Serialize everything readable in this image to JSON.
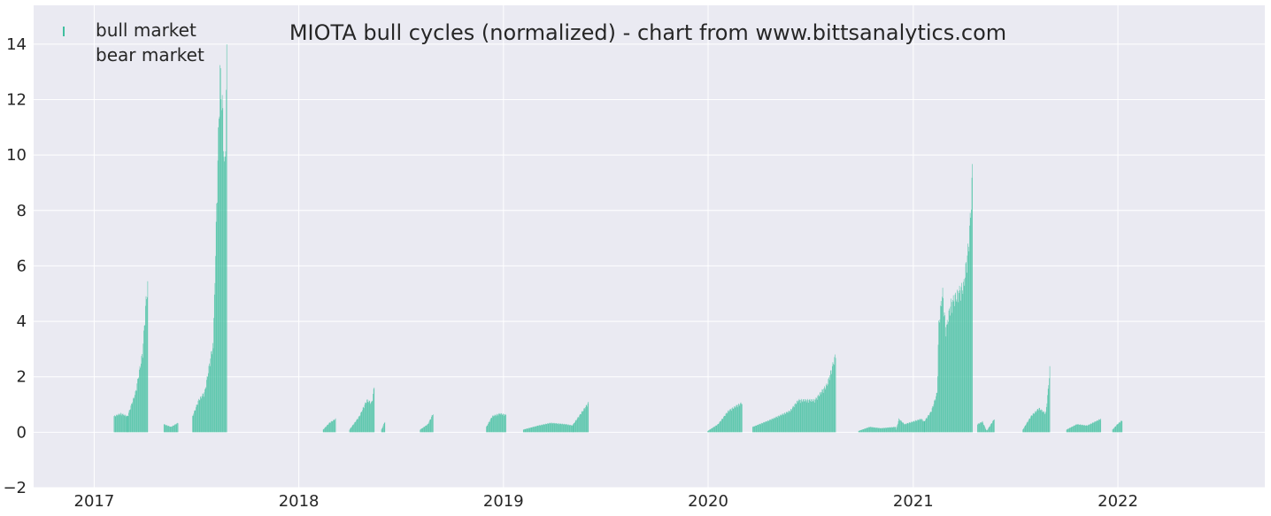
{
  "chart_data": {
    "type": "bar",
    "title": "MIOTA bull cycles (normalized)  - chart from www.bittsanalytics.com",
    "xlabel": "",
    "ylabel": "",
    "ylim": [
      -2,
      15.4
    ],
    "xlim": [
      "2016-09-15",
      "2022-09-20"
    ],
    "yticks": [
      -2,
      0,
      2,
      4,
      6,
      8,
      10,
      12,
      14
    ],
    "xticks": [
      {
        "date": "2017-01-01",
        "label": "2017"
      },
      {
        "date": "2018-01-01",
        "label": "2018"
      },
      {
        "date": "2019-01-01",
        "label": "2019"
      },
      {
        "date": "2020-01-01",
        "label": "2020"
      },
      {
        "date": "2021-01-01",
        "label": "2021"
      },
      {
        "date": "2022-01-01",
        "label": "2022"
      }
    ],
    "grid": true,
    "legend_placement": "top-left",
    "series": [
      {
        "name": "bull market",
        "color": "#3fbf9f",
        "segments": [
          {
            "start": "2017-02-05",
            "end": "2017-03-01",
            "points": [
              [
                0,
                0.6
              ],
              [
                0.5,
                0.7
              ],
              [
                1,
                0.6
              ]
            ]
          },
          {
            "start": "2017-03-01",
            "end": "2017-04-06",
            "points": [
              [
                0,
                0.6
              ],
              [
                0.4,
                1.5
              ],
              [
                0.75,
                3.0
              ],
              [
                0.9,
                4.8
              ],
              [
                1,
                5.5
              ]
            ]
          },
          {
            "start": "2017-05-05",
            "end": "2017-05-30",
            "points": [
              [
                0,
                0.3
              ],
              [
                0.5,
                0.2
              ],
              [
                1,
                0.35
              ]
            ]
          },
          {
            "start": "2017-06-25",
            "end": "2017-07-31",
            "points": [
              [
                0,
                0.6
              ],
              [
                0.3,
                1.2
              ],
              [
                0.6,
                1.5
              ],
              [
                0.85,
                2.6
              ],
              [
                1,
                3.3
              ]
            ]
          },
          {
            "start": "2017-08-01",
            "end": "2017-08-25",
            "points": [
              [
                0,
                3.3
              ],
              [
                0.3,
                9.5
              ],
              [
                0.5,
                13.5
              ],
              [
                0.7,
                12.0
              ],
              [
                0.85,
                9.5
              ],
              [
                1,
                14.0
              ]
            ]
          },
          {
            "start": "2018-02-13",
            "end": "2018-03-07",
            "points": [
              [
                0,
                0.1
              ],
              [
                0.5,
                0.35
              ],
              [
                1,
                0.5
              ]
            ]
          },
          {
            "start": "2018-04-01",
            "end": "2018-05-15",
            "points": [
              [
                0,
                0.1
              ],
              [
                0.4,
                0.6
              ],
              [
                0.7,
                1.2
              ],
              [
                0.9,
                1.1
              ],
              [
                1,
                1.7
              ]
            ]
          },
          {
            "start": "2018-05-28",
            "end": "2018-06-03",
            "points": [
              [
                0,
                0.1
              ],
              [
                1,
                0.4
              ]
            ]
          },
          {
            "start": "2018-08-05",
            "end": "2018-08-28",
            "points": [
              [
                0,
                0.1
              ],
              [
                0.6,
                0.3
              ],
              [
                1,
                0.7
              ]
            ]
          },
          {
            "start": "2018-12-01",
            "end": "2019-01-05",
            "points": [
              [
                0,
                0.2
              ],
              [
                0.3,
                0.6
              ],
              [
                0.7,
                0.7
              ],
              [
                1,
                0.65
              ]
            ]
          },
          {
            "start": "2019-02-05",
            "end": "2019-05-05",
            "points": [
              [
                0,
                0.1
              ],
              [
                0.3,
                0.25
              ],
              [
                0.55,
                0.35
              ],
              [
                0.85,
                0.3
              ],
              [
                1,
                0.25
              ]
            ]
          },
          {
            "start": "2019-05-05",
            "end": "2019-06-01",
            "points": [
              [
                0,
                0.3
              ],
              [
                0.5,
                0.7
              ],
              [
                1,
                1.1
              ]
            ]
          },
          {
            "start": "2019-12-31",
            "end": "2020-03-01",
            "points": [
              [
                0,
                0.05
              ],
              [
                0.3,
                0.3
              ],
              [
                0.6,
                0.8
              ],
              [
                0.85,
                1.0
              ],
              [
                1,
                1.1
              ]
            ]
          },
          {
            "start": "2020-03-20",
            "end": "2020-08-15",
            "points": [
              [
                0,
                0.2
              ],
              [
                0.2,
                0.45
              ],
              [
                0.45,
                0.8
              ],
              [
                0.55,
                1.2
              ],
              [
                0.75,
                1.2
              ],
              [
                0.9,
                1.8
              ],
              [
                1,
                2.9
              ]
            ]
          },
          {
            "start": "2020-09-25",
            "end": "2020-11-30",
            "points": [
              [
                0,
                0.05
              ],
              [
                0.3,
                0.2
              ],
              [
                0.6,
                0.15
              ],
              [
                1,
                0.2
              ]
            ]
          },
          {
            "start": "2020-12-01",
            "end": "2021-01-20",
            "points": [
              [
                0,
                0.1
              ],
              [
                0.1,
                0.5
              ],
              [
                0.3,
                0.3
              ],
              [
                0.6,
                0.4
              ],
              [
                0.9,
                0.5
              ],
              [
                1,
                0.4
              ]
            ]
          },
          {
            "start": "2021-01-20",
            "end": "2021-04-16",
            "points": [
              [
                0,
                0.4
              ],
              [
                0.15,
                0.8
              ],
              [
                0.27,
                1.5
              ],
              [
                0.3,
                4.0
              ],
              [
                0.38,
                5.3
              ],
              [
                0.45,
                3.8
              ],
              [
                0.55,
                4.8
              ],
              [
                0.7,
                5.2
              ],
              [
                0.82,
                5.5
              ],
              [
                0.92,
                7.0
              ],
              [
                0.97,
                8.4
              ],
              [
                1,
                9.8
              ]
            ]
          },
          {
            "start": "2021-04-25",
            "end": "2021-05-25",
            "points": [
              [
                0,
                0.3
              ],
              [
                0.3,
                0.4
              ],
              [
                0.55,
                0.05
              ],
              [
                0.8,
                0.3
              ],
              [
                1,
                0.5
              ]
            ]
          },
          {
            "start": "2021-07-15",
            "end": "2021-09-01",
            "points": [
              [
                0,
                0.1
              ],
              [
                0.3,
                0.6
              ],
              [
                0.6,
                0.9
              ],
              [
                0.85,
                0.7
              ],
              [
                0.95,
                1.7
              ],
              [
                1,
                2.4
              ]
            ]
          },
          {
            "start": "2021-10-01",
            "end": "2021-12-01",
            "points": [
              [
                0,
                0.1
              ],
              [
                0.3,
                0.3
              ],
              [
                0.6,
                0.25
              ],
              [
                1,
                0.5
              ]
            ]
          },
          {
            "start": "2021-12-22",
            "end": "2022-01-08",
            "points": [
              [
                0,
                0.1
              ],
              [
                0.5,
                0.3
              ],
              [
                1,
                0.45
              ]
            ]
          }
        ]
      },
      {
        "name": "bear market",
        "color": "#e8654e",
        "segments": []
      }
    ]
  }
}
